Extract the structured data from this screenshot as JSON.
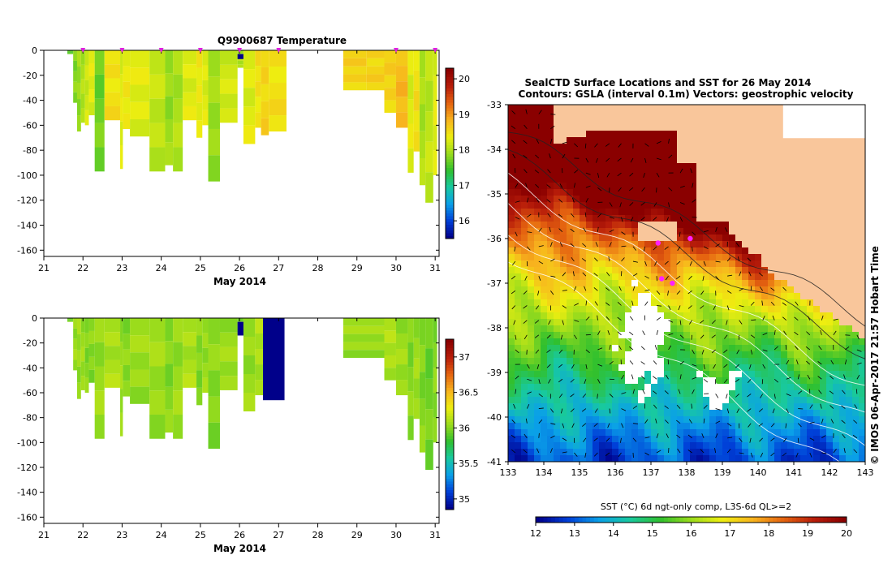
{
  "colors": {
    "land": "#f9c69b",
    "ocean_cmap": [
      "#00008a",
      "#0040d8",
      "#0aa0e8",
      "#18c9a0",
      "#30c02e",
      "#9bdc1c",
      "#eeee10",
      "#f8b41e",
      "#e56410",
      "#b81d0a",
      "#8a0000"
    ]
  },
  "chart_data": [
    {
      "type": "heatmap",
      "title": "Q9900687  Temperature",
      "xlabel": "May 2014",
      "ylabel": "",
      "xlim": [
        21,
        31.1
      ],
      "ylim": [
        -165,
        0
      ],
      "x_ticks": [
        "21",
        "22",
        "23",
        "24",
        "25",
        "26",
        "27",
        "28",
        "29",
        "30",
        "31"
      ],
      "y_ticks": [
        "0",
        "-20",
        "-40",
        "-60",
        "-80",
        "-100",
        "-120",
        "-140",
        "-160"
      ],
      "colorbar": {
        "min": 15.5,
        "max": 20.3,
        "ticks": [
          "16",
          "17",
          "18",
          "19",
          "20"
        ]
      },
      "profile_markers_x": [
        22,
        23,
        24,
        25,
        26,
        27,
        30,
        31
      ],
      "profiles": [
        {
          "x0": 21.6,
          "x1": 21.75,
          "depth": 3,
          "value": 17.6
        },
        {
          "x0": 21.75,
          "x1": 21.85,
          "depth": 42,
          "value": 17.8
        },
        {
          "x0": 21.85,
          "x1": 21.95,
          "depth": 65,
          "value": 17.9
        },
        {
          "x0": 21.95,
          "x1": 22.05,
          "depth": 58,
          "value": 18.0
        },
        {
          "x0": 22.05,
          "x1": 22.15,
          "depth": 60,
          "value": 18.2
        },
        {
          "x0": 22.15,
          "x1": 22.3,
          "depth": 52,
          "value": 18.3
        },
        {
          "x0": 22.3,
          "x1": 22.55,
          "depth": 97,
          "value": 17.7
        },
        {
          "x0": 22.55,
          "x1": 22.95,
          "depth": 56,
          "value": 18.5
        },
        {
          "x0": 22.95,
          "x1": 23.02,
          "depth": 95,
          "value": 18.3
        },
        {
          "x0": 23.02,
          "x1": 23.2,
          "depth": 63,
          "value": 18.4
        },
        {
          "x0": 23.2,
          "x1": 23.7,
          "depth": 69,
          "value": 18.3
        },
        {
          "x0": 23.7,
          "x1": 24.1,
          "depth": 97,
          "value": 18.1
        },
        {
          "x0": 24.1,
          "x1": 24.3,
          "depth": 92,
          "value": 17.9
        },
        {
          "x0": 24.3,
          "x1": 24.55,
          "depth": 97,
          "value": 18.0
        },
        {
          "x0": 24.55,
          "x1": 24.9,
          "depth": 56,
          "value": 18.3
        },
        {
          "x0": 24.9,
          "x1": 25.05,
          "depth": 70,
          "value": 18.4
        },
        {
          "x0": 25.05,
          "x1": 25.2,
          "depth": 60,
          "value": 18.3
        },
        {
          "x0": 25.2,
          "x1": 25.5,
          "depth": 105,
          "value": 17.9
        },
        {
          "x0": 25.5,
          "x1": 25.95,
          "depth": 58,
          "value": 18.2
        },
        {
          "x0": 25.95,
          "x1": 26.1,
          "depth": 14,
          "value": 18.0
        },
        {
          "x0": 26.1,
          "x1": 26.4,
          "depth": 75,
          "value": 18.3
        },
        {
          "x0": 26.4,
          "x1": 26.55,
          "depth": 62,
          "value": 18.5
        },
        {
          "x0": 26.55,
          "x1": 26.75,
          "depth": 68,
          "value": 18.6
        },
        {
          "x0": 26.75,
          "x1": 27.2,
          "depth": 65,
          "value": 18.5
        },
        {
          "x0": 28.65,
          "x1": 29.25,
          "depth": 32,
          "value": 18.6
        },
        {
          "x0": 29.25,
          "x1": 29.7,
          "depth": 32,
          "value": 18.6
        },
        {
          "x0": 29.7,
          "x1": 30.0,
          "depth": 50,
          "value": 18.6
        },
        {
          "x0": 30.0,
          "x1": 30.3,
          "depth": 62,
          "value": 18.8
        },
        {
          "x0": 30.3,
          "x1": 30.45,
          "depth": 98,
          "value": 18.3
        },
        {
          "x0": 30.45,
          "x1": 30.6,
          "depth": 81,
          "value": 18.5
        },
        {
          "x0": 30.6,
          "x1": 30.75,
          "depth": 108,
          "value": 18.0
        },
        {
          "x0": 30.75,
          "x1": 30.95,
          "depth": 122,
          "value": 18.1
        },
        {
          "x0": 30.95,
          "x1": 31.05,
          "depth": 100,
          "value": 18.3
        }
      ],
      "anomalies": [
        {
          "x0": 25.95,
          "x1": 26.1,
          "d0": 3,
          "d1": 7,
          "value": 15.5
        }
      ]
    },
    {
      "type": "heatmap",
      "title": "",
      "xlabel": "May 2014",
      "ylabel": "",
      "xlim": [
        21,
        31.1
      ],
      "ylim": [
        -165,
        0
      ],
      "x_ticks": [
        "21",
        "22",
        "23",
        "24",
        "25",
        "26",
        "27",
        "28",
        "29",
        "30",
        "31"
      ],
      "y_ticks": [
        "0",
        "-20",
        "-40",
        "-60",
        "-80",
        "-100",
        "-120",
        "-140",
        "-160"
      ],
      "colorbar": {
        "min": 34.85,
        "max": 37.25,
        "ticks": [
          "35",
          "35.5",
          "36",
          "36.5",
          "37"
        ]
      },
      "profiles": [
        {
          "x0": 21.6,
          "x1": 21.75,
          "depth": 3,
          "value": 35.95
        },
        {
          "x0": 21.75,
          "x1": 21.85,
          "depth": 42,
          "value": 36.05
        },
        {
          "x0": 21.85,
          "x1": 21.95,
          "depth": 65,
          "value": 36.05
        },
        {
          "x0": 21.95,
          "x1": 22.05,
          "depth": 58,
          "value": 36.05
        },
        {
          "x0": 22.05,
          "x1": 22.15,
          "depth": 60,
          "value": 36.0
        },
        {
          "x0": 22.15,
          "x1": 22.3,
          "depth": 52,
          "value": 36.0
        },
        {
          "x0": 22.3,
          "x1": 22.55,
          "depth": 97,
          "value": 36.05
        },
        {
          "x0": 22.55,
          "x1": 22.95,
          "depth": 56,
          "value": 36.1
        },
        {
          "x0": 22.95,
          "x1": 23.02,
          "depth": 95,
          "value": 36.05
        },
        {
          "x0": 23.02,
          "x1": 23.2,
          "depth": 63,
          "value": 36.0
        },
        {
          "x0": 23.2,
          "x1": 23.7,
          "depth": 69,
          "value": 36.05
        },
        {
          "x0": 23.7,
          "x1": 24.1,
          "depth": 97,
          "value": 36.05
        },
        {
          "x0": 24.1,
          "x1": 24.3,
          "depth": 92,
          "value": 36.0
        },
        {
          "x0": 24.3,
          "x1": 24.55,
          "depth": 97,
          "value": 36.05
        },
        {
          "x0": 24.55,
          "x1": 24.9,
          "depth": 56,
          "value": 36.1
        },
        {
          "x0": 24.9,
          "x1": 25.05,
          "depth": 70,
          "value": 36.0
        },
        {
          "x0": 25.05,
          "x1": 25.2,
          "depth": 60,
          "value": 36.05
        },
        {
          "x0": 25.2,
          "x1": 25.5,
          "depth": 105,
          "value": 36.0
        },
        {
          "x0": 25.5,
          "x1": 25.95,
          "depth": 58,
          "value": 36.05
        },
        {
          "x0": 25.95,
          "x1": 26.1,
          "depth": 14,
          "value": 36.0
        },
        {
          "x0": 26.1,
          "x1": 26.4,
          "depth": 75,
          "value": 36.05
        },
        {
          "x0": 26.4,
          "x1": 26.6,
          "depth": 62,
          "value": 36.1
        },
        {
          "x0": 28.65,
          "x1": 29.7,
          "depth": 32,
          "value": 36.05
        },
        {
          "x0": 29.7,
          "x1": 30.0,
          "depth": 50,
          "value": 36.1
        },
        {
          "x0": 30.0,
          "x1": 30.3,
          "depth": 62,
          "value": 36.05
        },
        {
          "x0": 30.3,
          "x1": 30.45,
          "depth": 98,
          "value": 36.0
        },
        {
          "x0": 30.45,
          "x1": 30.6,
          "depth": 81,
          "value": 36.05
        },
        {
          "x0": 30.6,
          "x1": 30.75,
          "depth": 108,
          "value": 36.0
        },
        {
          "x0": 30.75,
          "x1": 30.95,
          "depth": 122,
          "value": 35.95
        },
        {
          "x0": 30.95,
          "x1": 31.05,
          "depth": 100,
          "value": 36.0
        }
      ],
      "anomalies": [
        {
          "x0": 25.95,
          "x1": 26.1,
          "d0": 3,
          "d1": 14,
          "value": 34.85
        },
        {
          "x0": 26.6,
          "x1": 27.15,
          "d0": 0,
          "d1": 66,
          "value": 34.85
        }
      ]
    },
    {
      "type": "heatmap",
      "title": "SealCTD Surface Locations and SST for 26 May 2014",
      "subtitle": "Contours: GSLA (interval 0.1m) Vectors: geostrophic velocity",
      "xlabel": "",
      "ylabel": "",
      "xlim": [
        133,
        143
      ],
      "ylim": [
        -41,
        -33
      ],
      "x_ticks": [
        "133",
        "134",
        "135",
        "136",
        "137",
        "138",
        "139",
        "140",
        "141",
        "142",
        "143"
      ],
      "y_ticks": [
        "-33",
        "-34",
        "-35",
        "-36",
        "-37",
        "-38",
        "-39",
        "-40",
        "-41"
      ],
      "colorbar": {
        "label": "SST (°C) 6d ngt-only comp, L3S-6d QL>=2",
        "min": 12,
        "max": 20,
        "ticks": [
          "12",
          "13",
          "14",
          "15",
          "16",
          "17",
          "18",
          "19",
          "20"
        ]
      },
      "credit": "© IMOS 06-Apr-2017 21:57 Hobart Time",
      "seal_locations": [
        [
          137.2,
          -36.1
        ],
        [
          137.3,
          -36.9
        ],
        [
          137.6,
          -37.0
        ],
        [
          138.1,
          -36.0
        ]
      ]
    }
  ]
}
